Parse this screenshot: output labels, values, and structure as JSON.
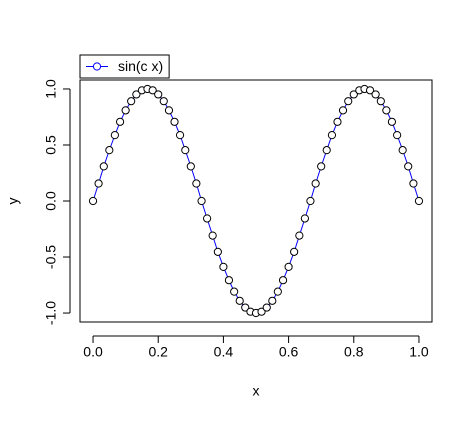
{
  "chart_data": {
    "type": "line",
    "xlabel": "x",
    "ylabel": "y",
    "x": [
      0,
      0.017,
      0.033,
      0.05,
      0.067,
      0.083,
      0.1,
      0.117,
      0.133,
      0.15,
      0.167,
      0.183,
      0.2,
      0.217,
      0.233,
      0.25,
      0.267,
      0.283,
      0.3,
      0.317,
      0.333,
      0.35,
      0.367,
      0.383,
      0.4,
      0.417,
      0.433,
      0.45,
      0.467,
      0.483,
      0.5,
      0.517,
      0.533,
      0.55,
      0.567,
      0.583,
      0.6,
      0.617,
      0.633,
      0.65,
      0.667,
      0.683,
      0.7,
      0.717,
      0.733,
      0.75,
      0.767,
      0.783,
      0.8,
      0.817,
      0.833,
      0.85,
      0.867,
      0.883,
      0.9,
      0.917,
      0.933,
      0.95,
      0.967,
      0.983,
      1
    ],
    "series": [
      {
        "name": "sin(c x)",
        "color": "#0000ff",
        "marker_edge": "#000000",
        "marker_fill": "#ffffff",
        "values": [
          0,
          0.156,
          0.309,
          0.454,
          0.588,
          0.707,
          0.809,
          0.891,
          0.951,
          0.988,
          1,
          0.988,
          0.951,
          0.891,
          0.809,
          0.707,
          0.588,
          0.454,
          0.309,
          0.156,
          0,
          -0.156,
          -0.309,
          -0.454,
          -0.588,
          -0.707,
          -0.809,
          -0.891,
          -0.951,
          -0.988,
          -1,
          -0.988,
          -0.951,
          -0.891,
          -0.809,
          -0.707,
          -0.588,
          -0.454,
          -0.309,
          -0.156,
          0,
          0.156,
          0.309,
          0.454,
          0.588,
          0.707,
          0.809,
          0.891,
          0.951,
          0.988,
          1,
          0.988,
          0.951,
          0.891,
          0.809,
          0.707,
          0.588,
          0.454,
          0.309,
          0.156,
          0
        ]
      }
    ],
    "xlim": [
      -0.04,
      1.04
    ],
    "ylim": [
      -1.08,
      1.08
    ],
    "xticks": [
      {
        "value": 0,
        "label": "0.0"
      },
      0.2,
      0.4,
      0.6,
      0.8,
      {
        "value": 1,
        "label": "1.0"
      }
    ],
    "yticks": [
      {
        "value": -1,
        "label": "-1.0"
      },
      -0.5,
      {
        "value": 0,
        "label": "0.0"
      },
      0.5,
      {
        "value": 1,
        "label": "1.0"
      }
    ],
    "legend": "top-left"
  }
}
